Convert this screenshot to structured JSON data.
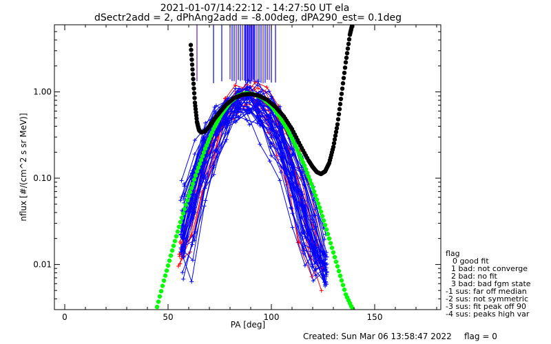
{
  "chart_data": {
    "type": "scatter",
    "title_lines": [
      "2021-01-07/14:22:12 - 14:27:50 UT ela",
      "dSectr2add = 2, dPhAng2add = -8.00deg, dPA290_est=    0.1deg"
    ],
    "xlabel": "PA [deg]",
    "ylabel": "nflux [#/(cm^2 s sr MeV)]",
    "xlim": [
      -5,
      182
    ],
    "ylim": [
      0.003,
      6.0
    ],
    "yscale": "log",
    "x_ticks": [
      0,
      50,
      100,
      150
    ],
    "x_tick_labels": [
      "0",
      "50",
      "100",
      "150"
    ],
    "y_ticks": [
      0.01,
      0.1,
      1.0
    ],
    "y_tick_labels": [
      "0.01",
      "0.10",
      "1.00"
    ],
    "grid": false,
    "colors": {
      "red_spectra": "#ff0000",
      "blue_spectra": "#0000ff",
      "green_fit": "#00ff00",
      "black_fit": "#000000",
      "purple_bars": "#5a1ab8"
    },
    "series": [
      {
        "style": "dotted-fit",
        "color": "#00ff00",
        "x": [
          44,
          48,
          52,
          56,
          60,
          64,
          68,
          72,
          76,
          80,
          84,
          88,
          92,
          96,
          100,
          104,
          108,
          112,
          116,
          120,
          124,
          128,
          132,
          136,
          140
        ],
        "y": [
          0.0028,
          0.0065,
          0.0145,
          0.031,
          0.062,
          0.12,
          0.22,
          0.37,
          0.56,
          0.76,
          0.91,
          0.97,
          0.93,
          0.84,
          0.69,
          0.52,
          0.36,
          0.23,
          0.14,
          0.078,
          0.041,
          0.02,
          0.0095,
          0.0045,
          0.0028
        ]
      },
      {
        "style": "dotted-fit",
        "color": "#000000",
        "x": [
          61,
          62,
          63,
          64,
          65,
          66,
          68,
          70,
          72,
          75,
          78,
          82,
          86,
          90,
          94,
          98,
          102,
          106,
          110,
          114,
          118,
          120,
          122,
          124,
          126,
          128,
          130,
          132,
          134,
          136,
          138,
          139
        ],
        "y": [
          3.5,
          1.6,
          0.75,
          0.45,
          0.36,
          0.34,
          0.35,
          0.4,
          0.47,
          0.58,
          0.71,
          0.85,
          0.93,
          0.95,
          0.9,
          0.81,
          0.67,
          0.52,
          0.37,
          0.24,
          0.16,
          0.135,
          0.118,
          0.112,
          0.12,
          0.15,
          0.23,
          0.42,
          0.95,
          2.2,
          4.6,
          5.8
        ]
      }
    ],
    "spectra": {
      "red": {
        "count": 10,
        "x_range": [
          56,
          124
        ],
        "y_floor": 0.006
      },
      "blue": {
        "count": 40,
        "x_range": [
          57,
          126
        ],
        "y_floor": 0.007
      }
    },
    "vertical_bars_x": [
      64,
      72,
      76,
      80,
      81,
      82,
      83,
      84,
      85,
      86,
      87,
      87.5,
      88,
      88.5,
      89,
      89.5,
      90,
      90.5,
      91,
      91.5,
      92,
      93,
      94,
      95,
      96,
      97,
      98,
      99,
      100,
      102
    ]
  },
  "legend": {
    "title": "flag",
    "items": [
      "0 good fit",
      "1 bad: not converge",
      "2 bad: no fit",
      "3 bad: bad fgm state",
      "-1 sus: far off median",
      "-2 sus: not symmetric",
      "-3 sus: fit peak off 90",
      "-4 sus: peaks high var"
    ]
  },
  "footer": {
    "created": "Created: Sun Mar 06 13:58:47 2022",
    "flag": "flag = 0"
  }
}
